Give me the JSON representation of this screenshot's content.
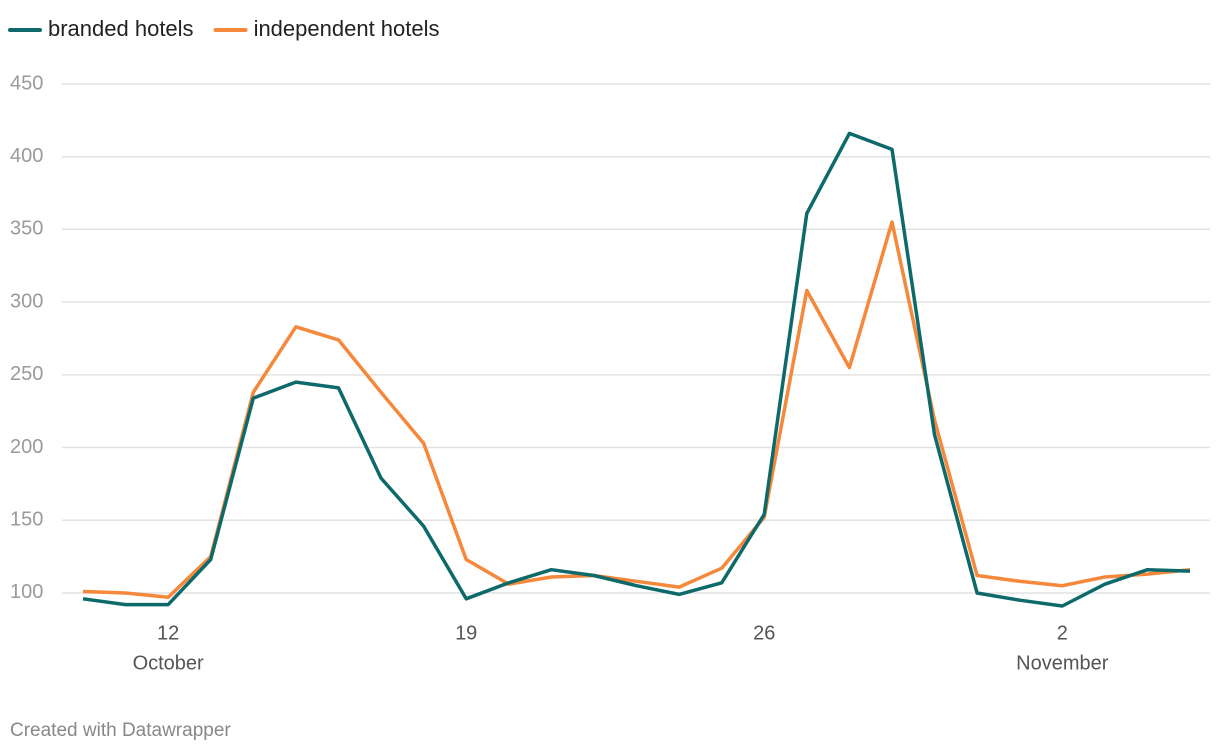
{
  "chart_data": {
    "type": "line",
    "categories": [
      null,
      null,
      "12",
      null,
      null,
      null,
      null,
      null,
      null,
      "19",
      null,
      null,
      null,
      null,
      null,
      null,
      "26",
      null,
      null,
      null,
      null,
      null,
      null,
      "2",
      null,
      null,
      null
    ],
    "month_labels": [
      {
        "category_index": 2,
        "label": "October"
      },
      {
        "category_index": 23,
        "label": "November"
      }
    ],
    "series": [
      {
        "name": "branded hotels",
        "color": "#0e6a6a",
        "values": [
          96,
          92,
          92,
          123,
          234,
          245,
          241,
          179,
          146,
          96,
          107,
          116,
          112,
          105,
          99,
          107,
          154,
          361,
          416,
          405,
          209,
          100,
          95,
          91,
          106,
          116,
          115
        ]
      },
      {
        "name": "independent hotels",
        "color": "#f5883a",
        "values": [
          101,
          100,
          97,
          125,
          238,
          283,
          274,
          238,
          203,
          123,
          106,
          111,
          112,
          108,
          104,
          117,
          152,
          308,
          255,
          355,
          219,
          112,
          108,
          105,
          111,
          113,
          116
        ]
      }
    ],
    "ylim": [
      90,
      450
    ],
    "yticks": [
      100,
      150,
      200,
      250,
      300,
      350,
      400,
      450
    ],
    "grid": true,
    "legend": "top-left",
    "footer": "Created with Datawrapper"
  }
}
